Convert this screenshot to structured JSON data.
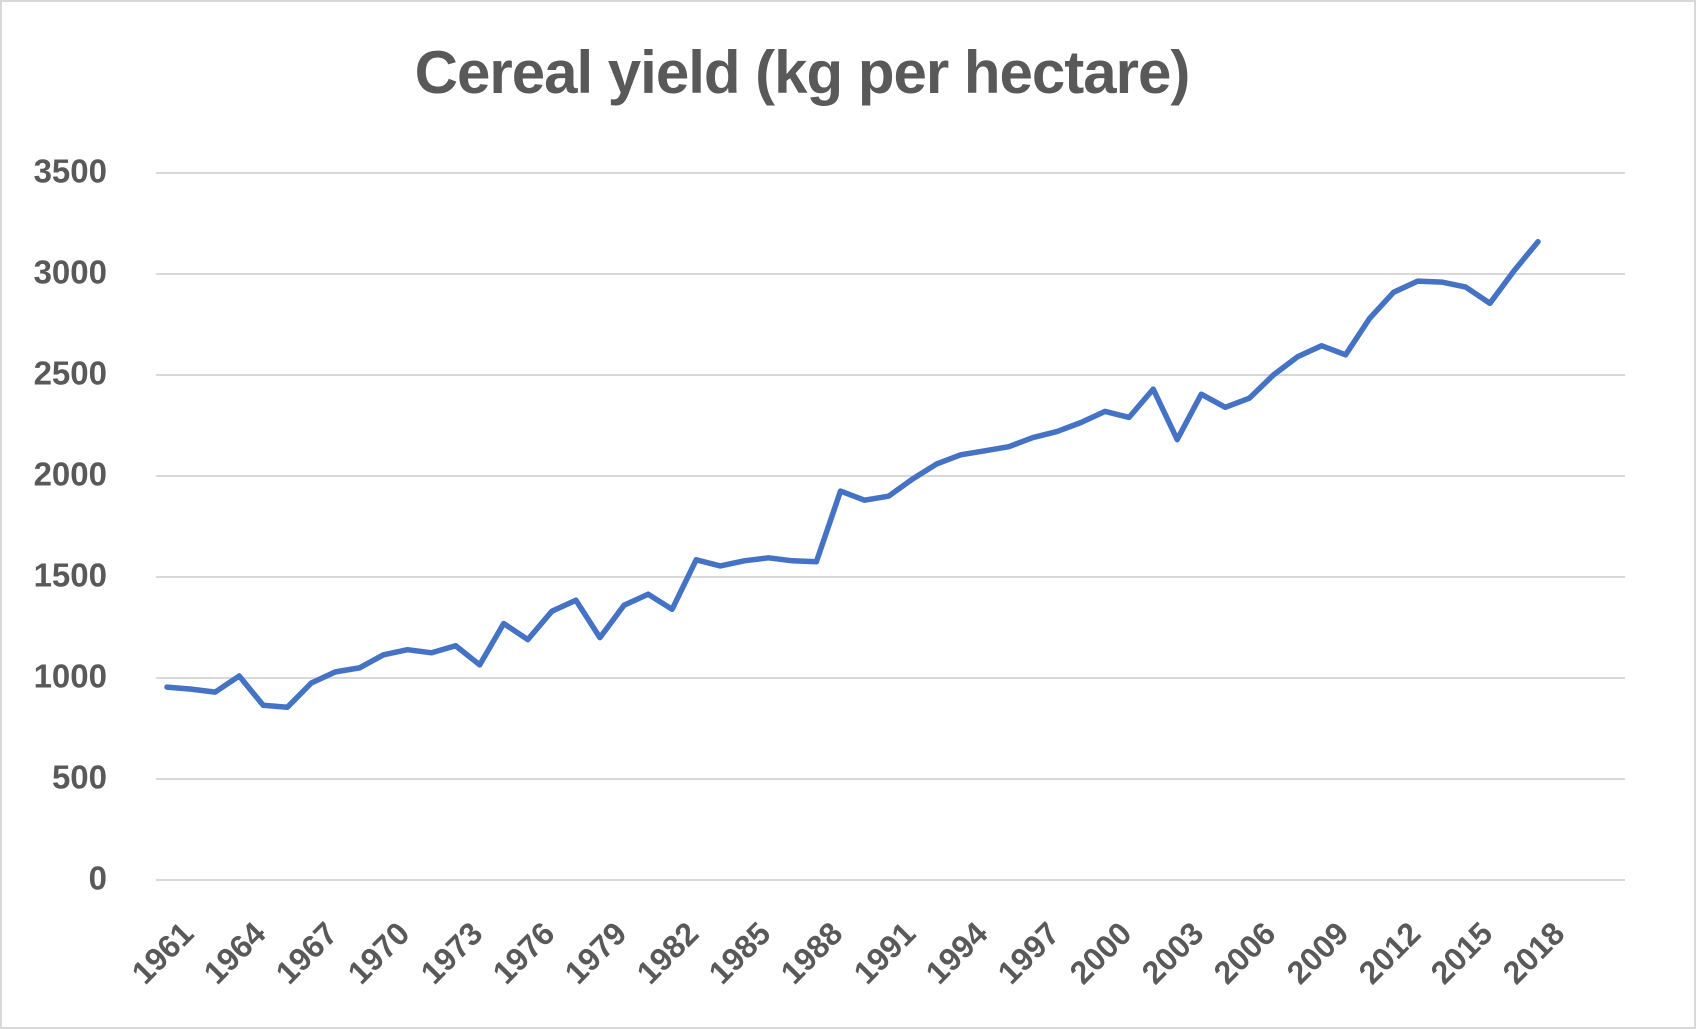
{
  "chart_data": {
    "type": "line",
    "title": "Cereal yield (kg per hectare)",
    "xlabel": "",
    "ylabel": "",
    "grid": true,
    "legend": "none",
    "ylim": [
      0,
      3500
    ],
    "y_ticks": [
      3500,
      3000,
      2500,
      2000,
      1500,
      1000,
      500,
      0
    ],
    "x_tick_labels": [
      "1961",
      "1964",
      "1967",
      "1970",
      "1973",
      "1976",
      "1979",
      "1982",
      "1985",
      "1988",
      "1991",
      "1994",
      "1997",
      "2000",
      "2003",
      "2006",
      "2009",
      "2012",
      "2015",
      "2018"
    ],
    "years": [
      1961,
      1962,
      1963,
      1964,
      1965,
      1966,
      1967,
      1968,
      1969,
      1970,
      1971,
      1972,
      1973,
      1974,
      1975,
      1976,
      1977,
      1978,
      1979,
      1980,
      1981,
      1982,
      1983,
      1984,
      1985,
      1986,
      1987,
      1988,
      1989,
      1990,
      1991,
      1992,
      1993,
      1994,
      1995,
      1996,
      1997,
      1998,
      1999,
      2000,
      2001,
      2002,
      2003,
      2004,
      2005,
      2006,
      2007,
      2008,
      2009,
      2010,
      2011,
      2012,
      2013,
      2014,
      2015,
      2016,
      2017,
      2018
    ],
    "values": [
      955,
      945,
      930,
      1010,
      865,
      855,
      975,
      1030,
      1050,
      1115,
      1140,
      1125,
      1160,
      1065,
      1270,
      1190,
      1330,
      1385,
      1200,
      1360,
      1415,
      1340,
      1585,
      1555,
      1580,
      1595,
      1580,
      1575,
      1925,
      1880,
      1900,
      1985,
      2060,
      2105,
      2125,
      2145,
      2190,
      2220,
      2265,
      2320,
      2290,
      2430,
      2180,
      2405,
      2340,
      2385,
      2500,
      2590,
      2645,
      2600,
      2780,
      2910,
      2965,
      2960,
      2935,
      2855,
      3015,
      3160
    ],
    "colors": {
      "line": "#4472C4",
      "title_text": "#595959",
      "tick_text": "#595959",
      "gridline": "#D9D9D9",
      "background": "#FFFFFF",
      "frame_border": "#D8D8D8"
    }
  }
}
